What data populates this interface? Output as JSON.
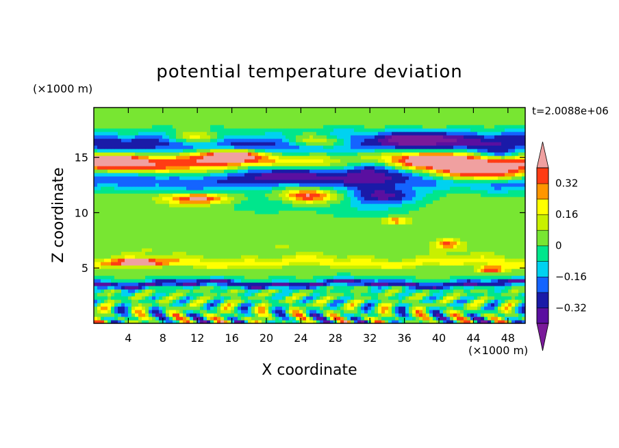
{
  "chart_data": {
    "type": "heatmap",
    "title": "potential temperature deviation",
    "xlabel": "X coordinate",
    "ylabel": "Z coordinate",
    "x_unit": "(×1000 m)",
    "y_unit": "(×1000 m)",
    "time_label": "t=2.0088e+06",
    "xlim": [
      0,
      50
    ],
    "ylim": [
      0,
      19.5
    ],
    "x_ticks": [
      4,
      8,
      12,
      16,
      20,
      24,
      28,
      32,
      36,
      40,
      44,
      48
    ],
    "y_ticks": [
      5,
      10,
      15
    ],
    "colorbar": {
      "levels": [
        -0.4,
        -0.32,
        -0.24,
        -0.16,
        -0.08,
        0,
        0.08,
        0.16,
        0.24,
        0.32,
        0.4
      ],
      "tick_labels": [
        "0.32",
        "0.16",
        "0",
        "−0.16",
        "−0.32"
      ],
      "tick_values": [
        0.32,
        0.16,
        0,
        -0.16,
        -0.32
      ],
      "colors": [
        "#7a1a9a",
        "#5a0fa0",
        "#1a1aa8",
        "#1464ff",
        "#00d2f0",
        "#00e68c",
        "#78e632",
        "#c8f000",
        "#ffff00",
        "#ff9600",
        "#ff3c14",
        "#f0a0a0"
      ],
      "extend": "both"
    },
    "z_features": [
      {
        "kind": "layer",
        "z": 18.5,
        "thickness": 1.5,
        "value": 0.05
      },
      {
        "kind": "layer",
        "z": 16.3,
        "thickness": 1.0,
        "value": -0.33
      },
      {
        "kind": "layer",
        "z": 14.6,
        "thickness": 0.9,
        "value": 0.4
      },
      {
        "kind": "layer",
        "z": 12.9,
        "thickness": 0.9,
        "value": -0.24
      },
      {
        "kind": "layer",
        "z": 11.2,
        "thickness": 0.8,
        "value": 0.03
      },
      {
        "kind": "layer",
        "z": 9.0,
        "thickness": 2.5,
        "value": 0.04
      },
      {
        "kind": "layer",
        "z": 6.5,
        "thickness": 1.0,
        "value": 0.06
      },
      {
        "kind": "layer",
        "z": 5.5,
        "thickness": 0.4,
        "value": 0.18
      },
      {
        "kind": "layer",
        "z": 3.6,
        "thickness": 0.3,
        "value": -0.34
      },
      {
        "kind": "blob",
        "x": 12,
        "z": 16.8,
        "rx": 3.5,
        "rz": 0.6,
        "value": 0.42
      },
      {
        "kind": "blob",
        "x": 26,
        "z": 16.5,
        "rx": 4,
        "rz": 0.6,
        "value": 0.42
      },
      {
        "kind": "blob",
        "x": 16,
        "z": 15.2,
        "rx": 3,
        "rz": 0.5,
        "value": 0.42
      },
      {
        "kind": "blob",
        "x": 2.5,
        "z": 14.6,
        "rx": 3,
        "rz": 0.6,
        "value": 0.42
      },
      {
        "kind": "blob",
        "x": 40,
        "z": 14.8,
        "rx": 5,
        "rz": 0.8,
        "value": 0.42
      },
      {
        "kind": "blob",
        "x": 45,
        "z": 13.5,
        "rx": 6,
        "rz": 0.7,
        "value": 0.42
      },
      {
        "kind": "blob",
        "x": 12,
        "z": 11.3,
        "rx": 3.5,
        "rz": 0.5,
        "value": 0.42
      },
      {
        "kind": "blob",
        "x": 25,
        "z": 11.6,
        "rx": 3,
        "rz": 0.7,
        "value": 0.42
      },
      {
        "kind": "blob",
        "x": 32,
        "z": 14.2,
        "rx": 5,
        "rz": 1.1,
        "value": -0.42
      },
      {
        "kind": "blob",
        "x": 23,
        "z": 13.8,
        "rx": 6,
        "rz": 0.9,
        "value": -0.33
      },
      {
        "kind": "blob",
        "x": 38,
        "z": 16.8,
        "rx": 4,
        "rz": 0.6,
        "value": -0.33
      },
      {
        "kind": "blob",
        "x": 47,
        "z": 15.3,
        "rx": 2.5,
        "rz": 0.6,
        "value": -0.33
      },
      {
        "kind": "blob",
        "x": 34,
        "z": 11.5,
        "rx": 4,
        "rz": 0.7,
        "value": -0.33
      },
      {
        "kind": "blob",
        "x": 32,
        "z": 10.5,
        "rx": 5,
        "rz": 1.0,
        "value": -0.12
      },
      {
        "kind": "blob",
        "x": 20,
        "z": 10.8,
        "rx": 6,
        "rz": 0.7,
        "value": -0.12
      },
      {
        "kind": "blob",
        "x": 35,
        "z": 9.3,
        "rx": 1.5,
        "rz": 0.3,
        "value": 0.3
      },
      {
        "kind": "blob",
        "x": 41,
        "z": 7.2,
        "rx": 1.2,
        "rz": 0.4,
        "value": 0.3
      },
      {
        "kind": "blob",
        "x": 5,
        "z": 5.5,
        "rx": 3,
        "rz": 0.3,
        "value": 0.42
      },
      {
        "kind": "blob",
        "x": 46,
        "z": 4.9,
        "rx": 1.5,
        "rz": 0.3,
        "value": 0.42
      }
    ]
  }
}
